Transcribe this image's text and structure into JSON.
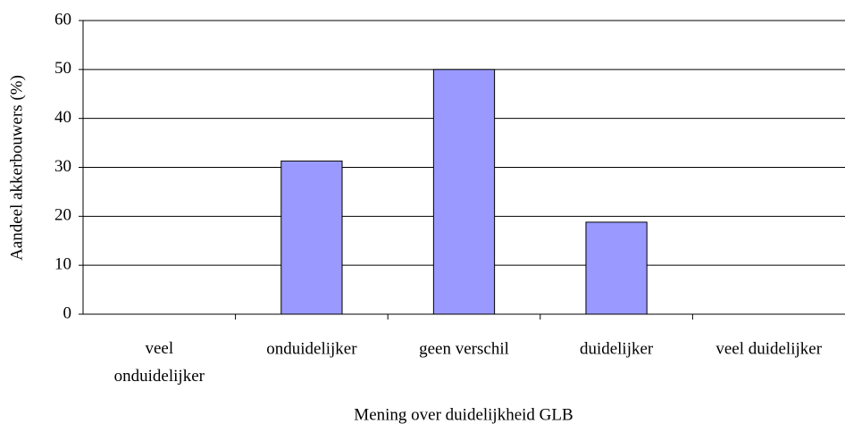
{
  "chart_data": {
    "type": "bar",
    "x_label": "Mening over duidelijkheid GLB",
    "y_label": "Aandeel akkerbouwers (%)",
    "categories": [
      "veel\nonduidelijker",
      "onduidelijker",
      "geen verschil",
      "duidelijker",
      "veel duidelijker"
    ],
    "values": [
      0,
      31.3,
      50,
      18.8,
      0
    ],
    "color": "#9999ff",
    "ylim": [
      0,
      60
    ],
    "yticks": [
      0,
      10,
      20,
      30,
      40,
      50,
      60
    ],
    "grid": true
  }
}
